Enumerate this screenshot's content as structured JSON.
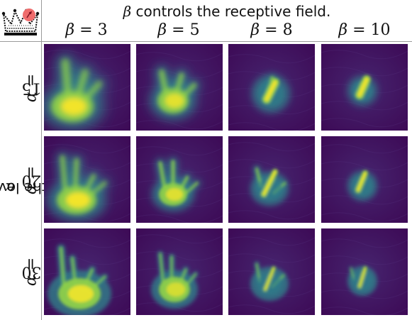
{
  "title": {
    "symbol": "β",
    "text": " controls the receptive field."
  },
  "row_caption": {
    "symbol": "α",
    "text": " controls the level of details."
  },
  "columns": [
    {
      "symbol": "β",
      "value": "3"
    },
    {
      "symbol": "β",
      "value": "5"
    },
    {
      "symbol": "β",
      "value": "8"
    },
    {
      "symbol": "β",
      "value": "10"
    }
  ],
  "rows": [
    {
      "symbol": "α",
      "value": "15"
    },
    {
      "symbol": "α",
      "value": "20"
    },
    {
      "symbol": "α",
      "value": "30"
    }
  ],
  "colors": {
    "background_dark": "#3d0a56",
    "background_mid": "#46256f",
    "mid": "#2e7e8a",
    "bright": "#8ed04a",
    "peak": "#f2e42a",
    "logo_badge": "#ef6c6c"
  }
}
